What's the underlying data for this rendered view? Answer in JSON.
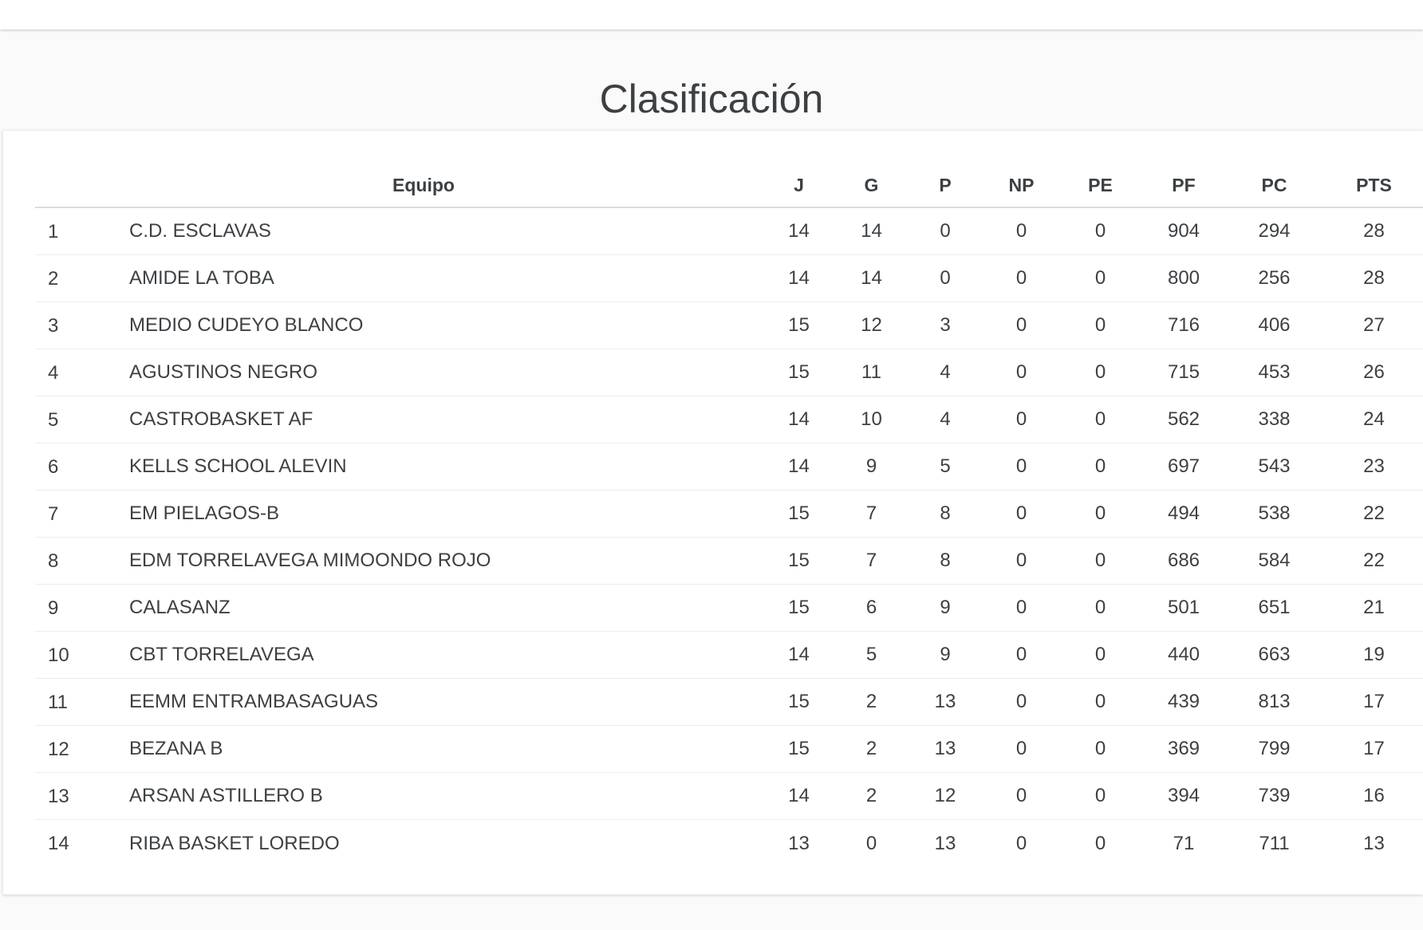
{
  "page": {
    "title": "Clasificación"
  },
  "colors": {
    "page_background": "#fafafa",
    "card_background": "#ffffff",
    "text": "#3d4043",
    "row_divider": "#ececec",
    "header_divider": "#dcdcdc"
  },
  "table": {
    "columns": [
      {
        "key": "rank",
        "label": ""
      },
      {
        "key": "team",
        "label": "Equipo"
      },
      {
        "key": "j",
        "label": "J"
      },
      {
        "key": "g",
        "label": "G"
      },
      {
        "key": "p",
        "label": "P"
      },
      {
        "key": "np",
        "label": "NP"
      },
      {
        "key": "pe",
        "label": "PE"
      },
      {
        "key": "pf",
        "label": "PF"
      },
      {
        "key": "pc",
        "label": "PC"
      },
      {
        "key": "pts",
        "label": "PTS"
      }
    ],
    "rows": [
      {
        "rank": 1,
        "team": "C.D. ESCLAVAS",
        "j": 14,
        "g": 14,
        "p": 0,
        "np": 0,
        "pe": 0,
        "pf": 904,
        "pc": 294,
        "pts": 28
      },
      {
        "rank": 2,
        "team": "AMIDE LA TOBA",
        "j": 14,
        "g": 14,
        "p": 0,
        "np": 0,
        "pe": 0,
        "pf": 800,
        "pc": 256,
        "pts": 28
      },
      {
        "rank": 3,
        "team": "MEDIO CUDEYO BLANCO",
        "j": 15,
        "g": 12,
        "p": 3,
        "np": 0,
        "pe": 0,
        "pf": 716,
        "pc": 406,
        "pts": 27
      },
      {
        "rank": 4,
        "team": "AGUSTINOS NEGRO",
        "j": 15,
        "g": 11,
        "p": 4,
        "np": 0,
        "pe": 0,
        "pf": 715,
        "pc": 453,
        "pts": 26
      },
      {
        "rank": 5,
        "team": "CASTROBASKET AF",
        "j": 14,
        "g": 10,
        "p": 4,
        "np": 0,
        "pe": 0,
        "pf": 562,
        "pc": 338,
        "pts": 24
      },
      {
        "rank": 6,
        "team": "KELLS SCHOOL ALEVIN",
        "j": 14,
        "g": 9,
        "p": 5,
        "np": 0,
        "pe": 0,
        "pf": 697,
        "pc": 543,
        "pts": 23
      },
      {
        "rank": 7,
        "team": "EM PIELAGOS-B",
        "j": 15,
        "g": 7,
        "p": 8,
        "np": 0,
        "pe": 0,
        "pf": 494,
        "pc": 538,
        "pts": 22
      },
      {
        "rank": 8,
        "team": "EDM TORRELAVEGA MIMOONDO ROJO",
        "j": 15,
        "g": 7,
        "p": 8,
        "np": 0,
        "pe": 0,
        "pf": 686,
        "pc": 584,
        "pts": 22
      },
      {
        "rank": 9,
        "team": "CALASANZ",
        "j": 15,
        "g": 6,
        "p": 9,
        "np": 0,
        "pe": 0,
        "pf": 501,
        "pc": 651,
        "pts": 21
      },
      {
        "rank": 10,
        "team": "CBT TORRELAVEGA",
        "j": 14,
        "g": 5,
        "p": 9,
        "np": 0,
        "pe": 0,
        "pf": 440,
        "pc": 663,
        "pts": 19
      },
      {
        "rank": 11,
        "team": "EEMM ENTRAMBASAGUAS",
        "j": 15,
        "g": 2,
        "p": 13,
        "np": 0,
        "pe": 0,
        "pf": 439,
        "pc": 813,
        "pts": 17
      },
      {
        "rank": 12,
        "team": "BEZANA B",
        "j": 15,
        "g": 2,
        "p": 13,
        "np": 0,
        "pe": 0,
        "pf": 369,
        "pc": 799,
        "pts": 17
      },
      {
        "rank": 13,
        "team": "ARSAN ASTILLERO B",
        "j": 14,
        "g": 2,
        "p": 12,
        "np": 0,
        "pe": 0,
        "pf": 394,
        "pc": 739,
        "pts": 16
      },
      {
        "rank": 14,
        "team": "RIBA BASKET LOREDO",
        "j": 13,
        "g": 0,
        "p": 13,
        "np": 0,
        "pe": 0,
        "pf": 71,
        "pc": 711,
        "pts": 13
      }
    ]
  }
}
